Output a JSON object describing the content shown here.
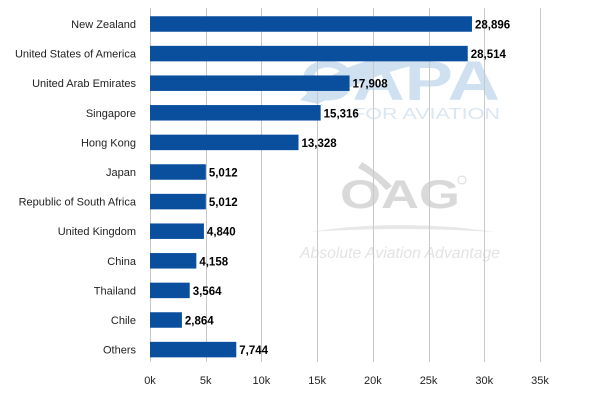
{
  "chart_data": {
    "type": "bar",
    "orientation": "horizontal",
    "categories": [
      "New Zealand",
      "United States of America",
      "United Arab Emirates",
      "Singapore",
      "Hong Kong",
      "Japan",
      "Republic of South Africa",
      "United Kingdom",
      "China",
      "Thailand",
      "Chile",
      "Others"
    ],
    "values": [
      28896,
      28514,
      17908,
      15316,
      13328,
      5012,
      5012,
      4840,
      4158,
      3564,
      2864,
      7744
    ],
    "data_labels": [
      "28,896",
      "28,514",
      "17,908",
      "15,316",
      "13,328",
      "5,012",
      "5,012",
      "4,840",
      "4,158",
      "3,564",
      "2,864",
      "7,744"
    ],
    "x_ticks": [
      0,
      5000,
      10000,
      15000,
      20000,
      25000,
      30000,
      35000
    ],
    "x_tick_labels": [
      "0k",
      "5k",
      "10k",
      "15k",
      "20k",
      "25k",
      "30k",
      "35k"
    ],
    "xlim": [
      0,
      35000
    ],
    "title": "",
    "xlabel": "",
    "ylabel": "",
    "grid": true,
    "bar_color": "#0a4f9e"
  },
  "watermarks": {
    "capa_logo": "CAPA",
    "capa_tagline": "FOR AVIATION",
    "oag_logo": "OAG",
    "oag_tagline": "Absolute Aviation Advantage"
  }
}
